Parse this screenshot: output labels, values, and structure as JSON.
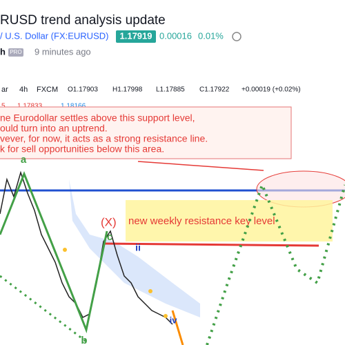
{
  "header": {
    "title": "RUSD trend analysis update",
    "symbol": "/ U.S. Dollar (FX:EURUSD)",
    "price": "1.17919",
    "change": "0.00016",
    "change_pct": "0.01%",
    "author": "h",
    "badge": "PRO",
    "time": "9 minutes ago"
  },
  "chart": {
    "legend": {
      "symbol": "ar",
      "interval": "4h",
      "source": "FXCM",
      "open": "O1.17903",
      "high": "H1.17998",
      "low": "L1.17885",
      "close": "C1.17922",
      "delta": "+0.00019 (+0.02%)"
    },
    "indicator": {
      "name": "5",
      "value1": "1.17833",
      "value2": "1.18166"
    },
    "note": [
      "ne Eurodollar settles above this support level,",
      "ould turn into an uptrend.",
      "vever, for now, it acts as a strong resistance line.",
      "k for sell opportunities below this area."
    ],
    "wave_labels": {
      "a": "a",
      "b": "b",
      "c": "c",
      "ii": "ii",
      "iv": "iv"
    },
    "resistance": {
      "mark": "(X)",
      "label": "new weekly resistance key level"
    }
  }
}
